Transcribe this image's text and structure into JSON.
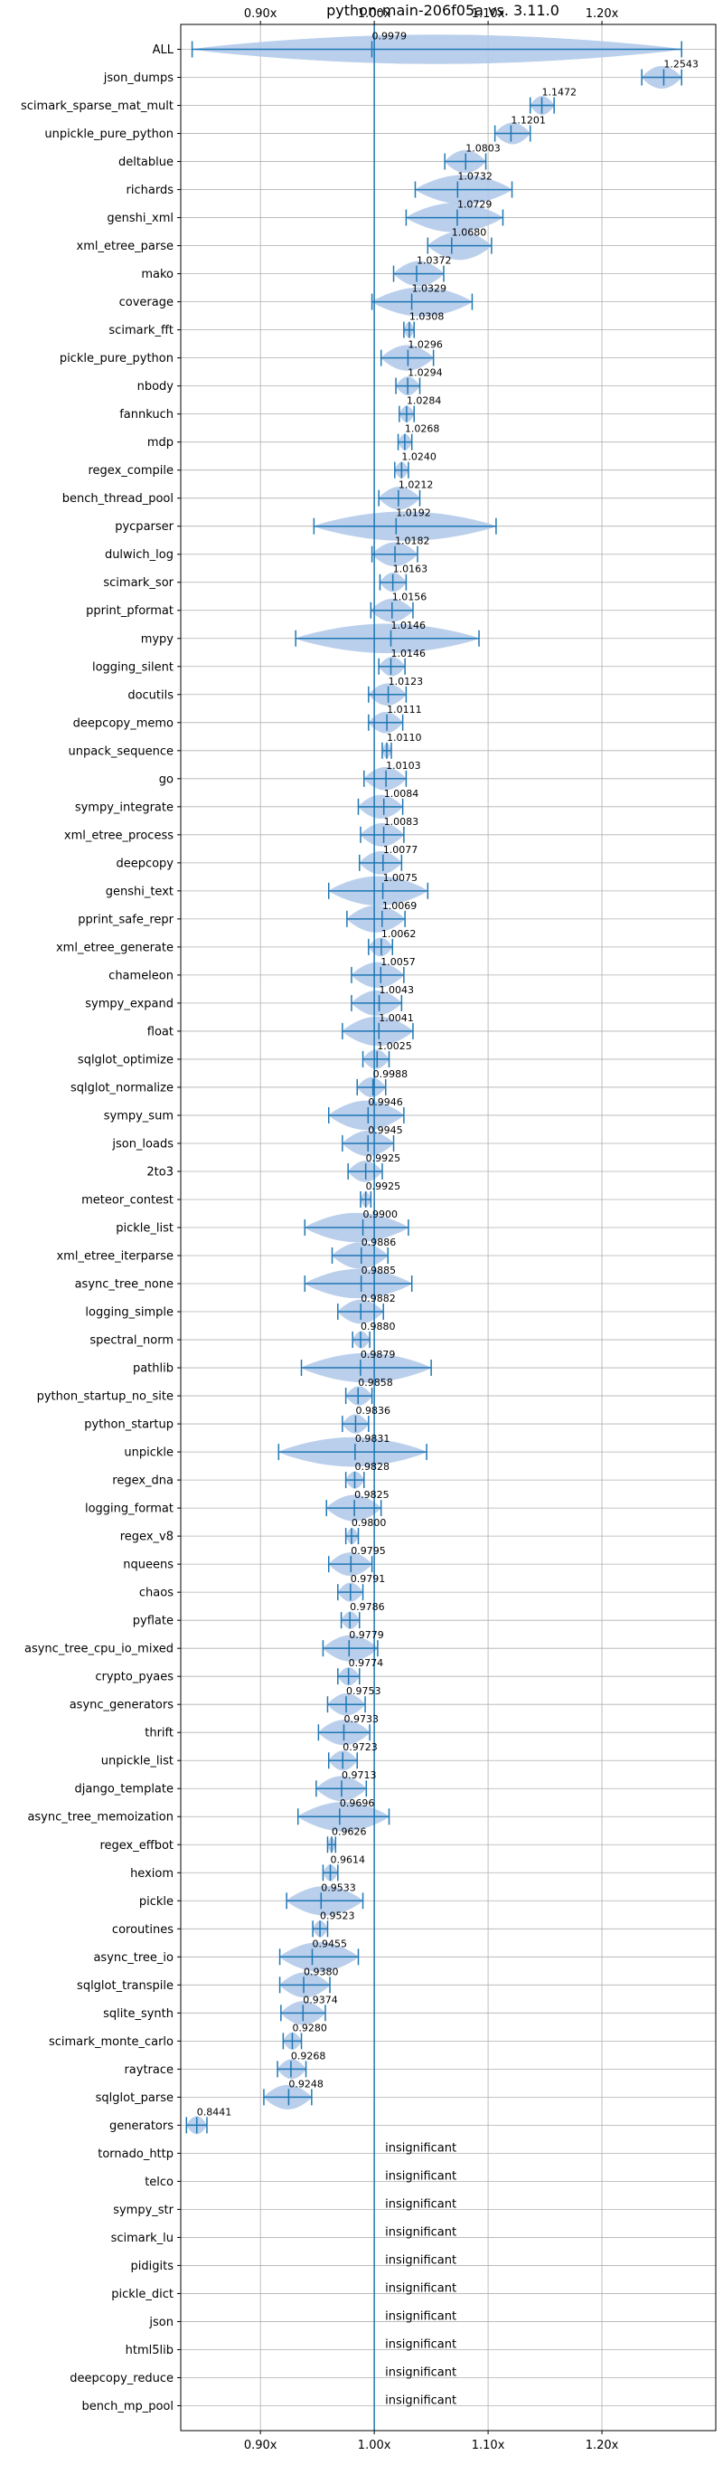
{
  "chart_data": {
    "type": "violin",
    "title": "python-main-206f05a vs. 3.11.0",
    "xlim": [
      0.83,
      1.3
    ],
    "x_ticks": [
      {
        "value": 0.9,
        "label": "0.90x"
      },
      {
        "value": 1.0,
        "label": "1.00x"
      },
      {
        "value": 1.1,
        "label": "1.10x"
      },
      {
        "value": 1.2,
        "label": "1.20x"
      }
    ],
    "reference_line": 1.0,
    "grid": true,
    "colors": {
      "line": "#1f77b4",
      "violin": "#aec7e8",
      "grid": "#b0b0b0"
    },
    "insignificant_label": "insignificant",
    "benchmarks": [
      {
        "name": "ALL",
        "value": 0.9979,
        "label": "0.9979",
        "min": 0.84,
        "max": 1.27
      },
      {
        "name": "json_dumps",
        "value": 1.2543,
        "label": "1.2543",
        "min": 1.235,
        "max": 1.27
      },
      {
        "name": "scimark_sparse_mat_mult",
        "value": 1.1472,
        "label": "1.1472",
        "min": 1.137,
        "max": 1.158
      },
      {
        "name": "unpickle_pure_python",
        "value": 1.1201,
        "label": "1.1201",
        "min": 1.106,
        "max": 1.137
      },
      {
        "name": "deltablue",
        "value": 1.0803,
        "label": "1.0803",
        "min": 1.062,
        "max": 1.098
      },
      {
        "name": "richards",
        "value": 1.0732,
        "label": "1.0732",
        "min": 1.036,
        "max": 1.121
      },
      {
        "name": "genshi_xml",
        "value": 1.0729,
        "label": "1.0729",
        "min": 1.028,
        "max": 1.113
      },
      {
        "name": "xml_etree_parse",
        "value": 1.068,
        "label": "1.0680",
        "min": 1.047,
        "max": 1.103
      },
      {
        "name": "mako",
        "value": 1.0372,
        "label": "1.0372",
        "min": 1.017,
        "max": 1.061
      },
      {
        "name": "coverage",
        "value": 1.0329,
        "label": "1.0329",
        "min": 0.998,
        "max": 1.086
      },
      {
        "name": "scimark_fft",
        "value": 1.0308,
        "label": "1.0308",
        "min": 1.026,
        "max": 1.035
      },
      {
        "name": "pickle_pure_python",
        "value": 1.0296,
        "label": "1.0296",
        "min": 1.006,
        "max": 1.052
      },
      {
        "name": "nbody",
        "value": 1.0294,
        "label": "1.0294",
        "min": 1.019,
        "max": 1.04
      },
      {
        "name": "fannkuch",
        "value": 1.0284,
        "label": "1.0284",
        "min": 1.022,
        "max": 1.035
      },
      {
        "name": "mdp",
        "value": 1.0268,
        "label": "1.0268",
        "min": 1.021,
        "max": 1.033
      },
      {
        "name": "regex_compile",
        "value": 1.024,
        "label": "1.0240",
        "min": 1.018,
        "max": 1.03
      },
      {
        "name": "bench_thread_pool",
        "value": 1.0212,
        "label": "1.0212",
        "min": 1.004,
        "max": 1.04
      },
      {
        "name": "pycparser",
        "value": 1.0192,
        "label": "1.0192",
        "min": 0.947,
        "max": 1.107
      },
      {
        "name": "dulwich_log",
        "value": 1.0182,
        "label": "1.0182",
        "min": 0.998,
        "max": 1.038
      },
      {
        "name": "scimark_sor",
        "value": 1.0163,
        "label": "1.0163",
        "min": 1.005,
        "max": 1.028
      },
      {
        "name": "pprint_pformat",
        "value": 1.0156,
        "label": "1.0156",
        "min": 0.997,
        "max": 1.034
      },
      {
        "name": "mypy",
        "value": 1.0146,
        "label": "1.0146",
        "min": 0.931,
        "max": 1.092
      },
      {
        "name": "logging_silent",
        "value": 1.0146,
        "label": "1.0146",
        "min": 1.004,
        "max": 1.027
      },
      {
        "name": "docutils",
        "value": 1.0123,
        "label": "1.0123",
        "min": 0.995,
        "max": 1.028
      },
      {
        "name": "deepcopy_memo",
        "value": 1.0111,
        "label": "1.0111",
        "min": 0.995,
        "max": 1.025
      },
      {
        "name": "unpack_sequence",
        "value": 1.011,
        "label": "1.0110",
        "min": 1.007,
        "max": 1.015
      },
      {
        "name": "go",
        "value": 1.0103,
        "label": "1.0103",
        "min": 0.991,
        "max": 1.028
      },
      {
        "name": "sympy_integrate",
        "value": 1.0084,
        "label": "1.0084",
        "min": 0.986,
        "max": 1.025
      },
      {
        "name": "xml_etree_process",
        "value": 1.0083,
        "label": "1.0083",
        "min": 0.988,
        "max": 1.026
      },
      {
        "name": "deepcopy",
        "value": 1.0077,
        "label": "1.0077",
        "min": 0.987,
        "max": 1.024
      },
      {
        "name": "genshi_text",
        "value": 1.0075,
        "label": "1.0075",
        "min": 0.96,
        "max": 1.047
      },
      {
        "name": "pprint_safe_repr",
        "value": 1.0069,
        "label": "1.0069",
        "min": 0.976,
        "max": 1.027
      },
      {
        "name": "xml_etree_generate",
        "value": 1.0062,
        "label": "1.0062",
        "min": 0.995,
        "max": 1.016
      },
      {
        "name": "chameleon",
        "value": 1.0057,
        "label": "1.0057",
        "min": 0.98,
        "max": 1.026
      },
      {
        "name": "sympy_expand",
        "value": 1.0043,
        "label": "1.0043",
        "min": 0.98,
        "max": 1.024
      },
      {
        "name": "float",
        "value": 1.0041,
        "label": "1.0041",
        "min": 0.972,
        "max": 1.034
      },
      {
        "name": "sqlglot_optimize",
        "value": 1.0025,
        "label": "1.0025",
        "min": 0.99,
        "max": 1.013
      },
      {
        "name": "sqlglot_normalize",
        "value": 0.9988,
        "label": "0.9988",
        "min": 0.985,
        "max": 1.01
      },
      {
        "name": "sympy_sum",
        "value": 0.9946,
        "label": "0.9946",
        "min": 0.96,
        "max": 1.026
      },
      {
        "name": "json_loads",
        "value": 0.9945,
        "label": "0.9945",
        "min": 0.972,
        "max": 1.017
      },
      {
        "name": "2to3",
        "value": 0.9925,
        "label": "0.9925",
        "min": 0.977,
        "max": 1.007
      },
      {
        "name": "meteor_contest",
        "value": 0.9925,
        "label": "0.9925",
        "min": 0.988,
        "max": 0.997
      },
      {
        "name": "pickle_list",
        "value": 0.99,
        "label": "0.9900",
        "min": 0.939,
        "max": 1.03
      },
      {
        "name": "xml_etree_iterparse",
        "value": 0.9886,
        "label": "0.9886",
        "min": 0.963,
        "max": 1.012
      },
      {
        "name": "async_tree_none",
        "value": 0.9885,
        "label": "0.9885",
        "min": 0.939,
        "max": 1.033
      },
      {
        "name": "logging_simple",
        "value": 0.9882,
        "label": "0.9882",
        "min": 0.968,
        "max": 1.008
      },
      {
        "name": "spectral_norm",
        "value": 0.988,
        "label": "0.9880",
        "min": 0.981,
        "max": 0.996
      },
      {
        "name": "pathlib",
        "value": 0.9879,
        "label": "0.9879",
        "min": 0.936,
        "max": 1.05
      },
      {
        "name": "python_startup_no_site",
        "value": 0.9858,
        "label": "0.9858",
        "min": 0.975,
        "max": 0.998
      },
      {
        "name": "python_startup",
        "value": 0.9836,
        "label": "0.9836",
        "min": 0.972,
        "max": 0.995
      },
      {
        "name": "unpickle",
        "value": 0.9831,
        "label": "0.9831",
        "min": 0.916,
        "max": 1.046
      },
      {
        "name": "regex_dna",
        "value": 0.9828,
        "label": "0.9828",
        "min": 0.975,
        "max": 0.991
      },
      {
        "name": "logging_format",
        "value": 0.9825,
        "label": "0.9825",
        "min": 0.958,
        "max": 1.006
      },
      {
        "name": "regex_v8",
        "value": 0.98,
        "label": "0.9800",
        "min": 0.975,
        "max": 0.986
      },
      {
        "name": "nqueens",
        "value": 0.9795,
        "label": "0.9795",
        "min": 0.96,
        "max": 0.998
      },
      {
        "name": "chaos",
        "value": 0.9791,
        "label": "0.9791",
        "min": 0.968,
        "max": 0.99
      },
      {
        "name": "pyflate",
        "value": 0.9786,
        "label": "0.9786",
        "min": 0.971,
        "max": 0.987
      },
      {
        "name": "async_tree_cpu_io_mixed",
        "value": 0.9779,
        "label": "0.9779",
        "min": 0.955,
        "max": 1.003
      },
      {
        "name": "crypto_pyaes",
        "value": 0.9774,
        "label": "0.9774",
        "min": 0.968,
        "max": 0.987
      },
      {
        "name": "async_generators",
        "value": 0.9753,
        "label": "0.9753",
        "min": 0.959,
        "max": 0.992
      },
      {
        "name": "thrift",
        "value": 0.9733,
        "label": "0.9733",
        "min": 0.951,
        "max": 0.996
      },
      {
        "name": "unpickle_list",
        "value": 0.9723,
        "label": "0.9723",
        "min": 0.96,
        "max": 0.985
      },
      {
        "name": "django_template",
        "value": 0.9713,
        "label": "0.9713",
        "min": 0.949,
        "max": 0.993
      },
      {
        "name": "async_tree_memoization",
        "value": 0.9696,
        "label": "0.9696",
        "min": 0.933,
        "max": 1.013
      },
      {
        "name": "regex_effbot",
        "value": 0.9626,
        "label": "0.9626",
        "min": 0.959,
        "max": 0.966
      },
      {
        "name": "hexiom",
        "value": 0.9614,
        "label": "0.9614",
        "min": 0.955,
        "max": 0.968
      },
      {
        "name": "pickle",
        "value": 0.9533,
        "label": "0.9533",
        "min": 0.923,
        "max": 0.99
      },
      {
        "name": "coroutines",
        "value": 0.9523,
        "label": "0.9523",
        "min": 0.946,
        "max": 0.959
      },
      {
        "name": "async_tree_io",
        "value": 0.9455,
        "label": "0.9455",
        "min": 0.917,
        "max": 0.986
      },
      {
        "name": "sqlglot_transpile",
        "value": 0.938,
        "label": "0.9380",
        "min": 0.917,
        "max": 0.961
      },
      {
        "name": "sqlite_synth",
        "value": 0.9374,
        "label": "0.9374",
        "min": 0.918,
        "max": 0.957
      },
      {
        "name": "scimark_monte_carlo",
        "value": 0.928,
        "label": "0.9280",
        "min": 0.92,
        "max": 0.936
      },
      {
        "name": "raytrace",
        "value": 0.9268,
        "label": "0.9268",
        "min": 0.915,
        "max": 0.94
      },
      {
        "name": "sqlglot_parse",
        "value": 0.9248,
        "label": "0.9248",
        "min": 0.903,
        "max": 0.945
      },
      {
        "name": "generators",
        "value": 0.8441,
        "label": "0.8441",
        "min": 0.835,
        "max": 0.853
      },
      {
        "name": "tornado_http",
        "insignificant": true
      },
      {
        "name": "telco",
        "insignificant": true
      },
      {
        "name": "sympy_str",
        "insignificant": true
      },
      {
        "name": "scimark_lu",
        "insignificant": true
      },
      {
        "name": "pidigits",
        "insignificant": true
      },
      {
        "name": "pickle_dict",
        "insignificant": true
      },
      {
        "name": "json",
        "insignificant": true
      },
      {
        "name": "html5lib",
        "insignificant": true
      },
      {
        "name": "deepcopy_reduce",
        "insignificant": true
      },
      {
        "name": "bench_mp_pool",
        "insignificant": true
      }
    ]
  }
}
